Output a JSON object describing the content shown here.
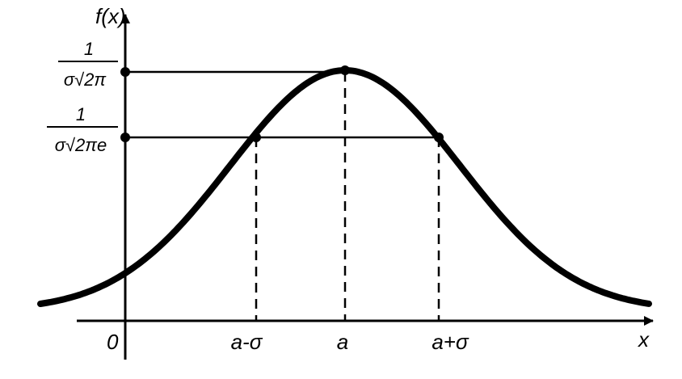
{
  "axes": {
    "y_label": "f(x)",
    "x_label": "x",
    "origin": "0"
  },
  "x_ticks": [
    "a-σ",
    "a",
    "a+σ"
  ],
  "y_ticks": [
    {
      "numerator": "1",
      "denominator": "σ√2π"
    },
    {
      "numerator": "1",
      "denominator": "σ√2πe"
    }
  ]
}
